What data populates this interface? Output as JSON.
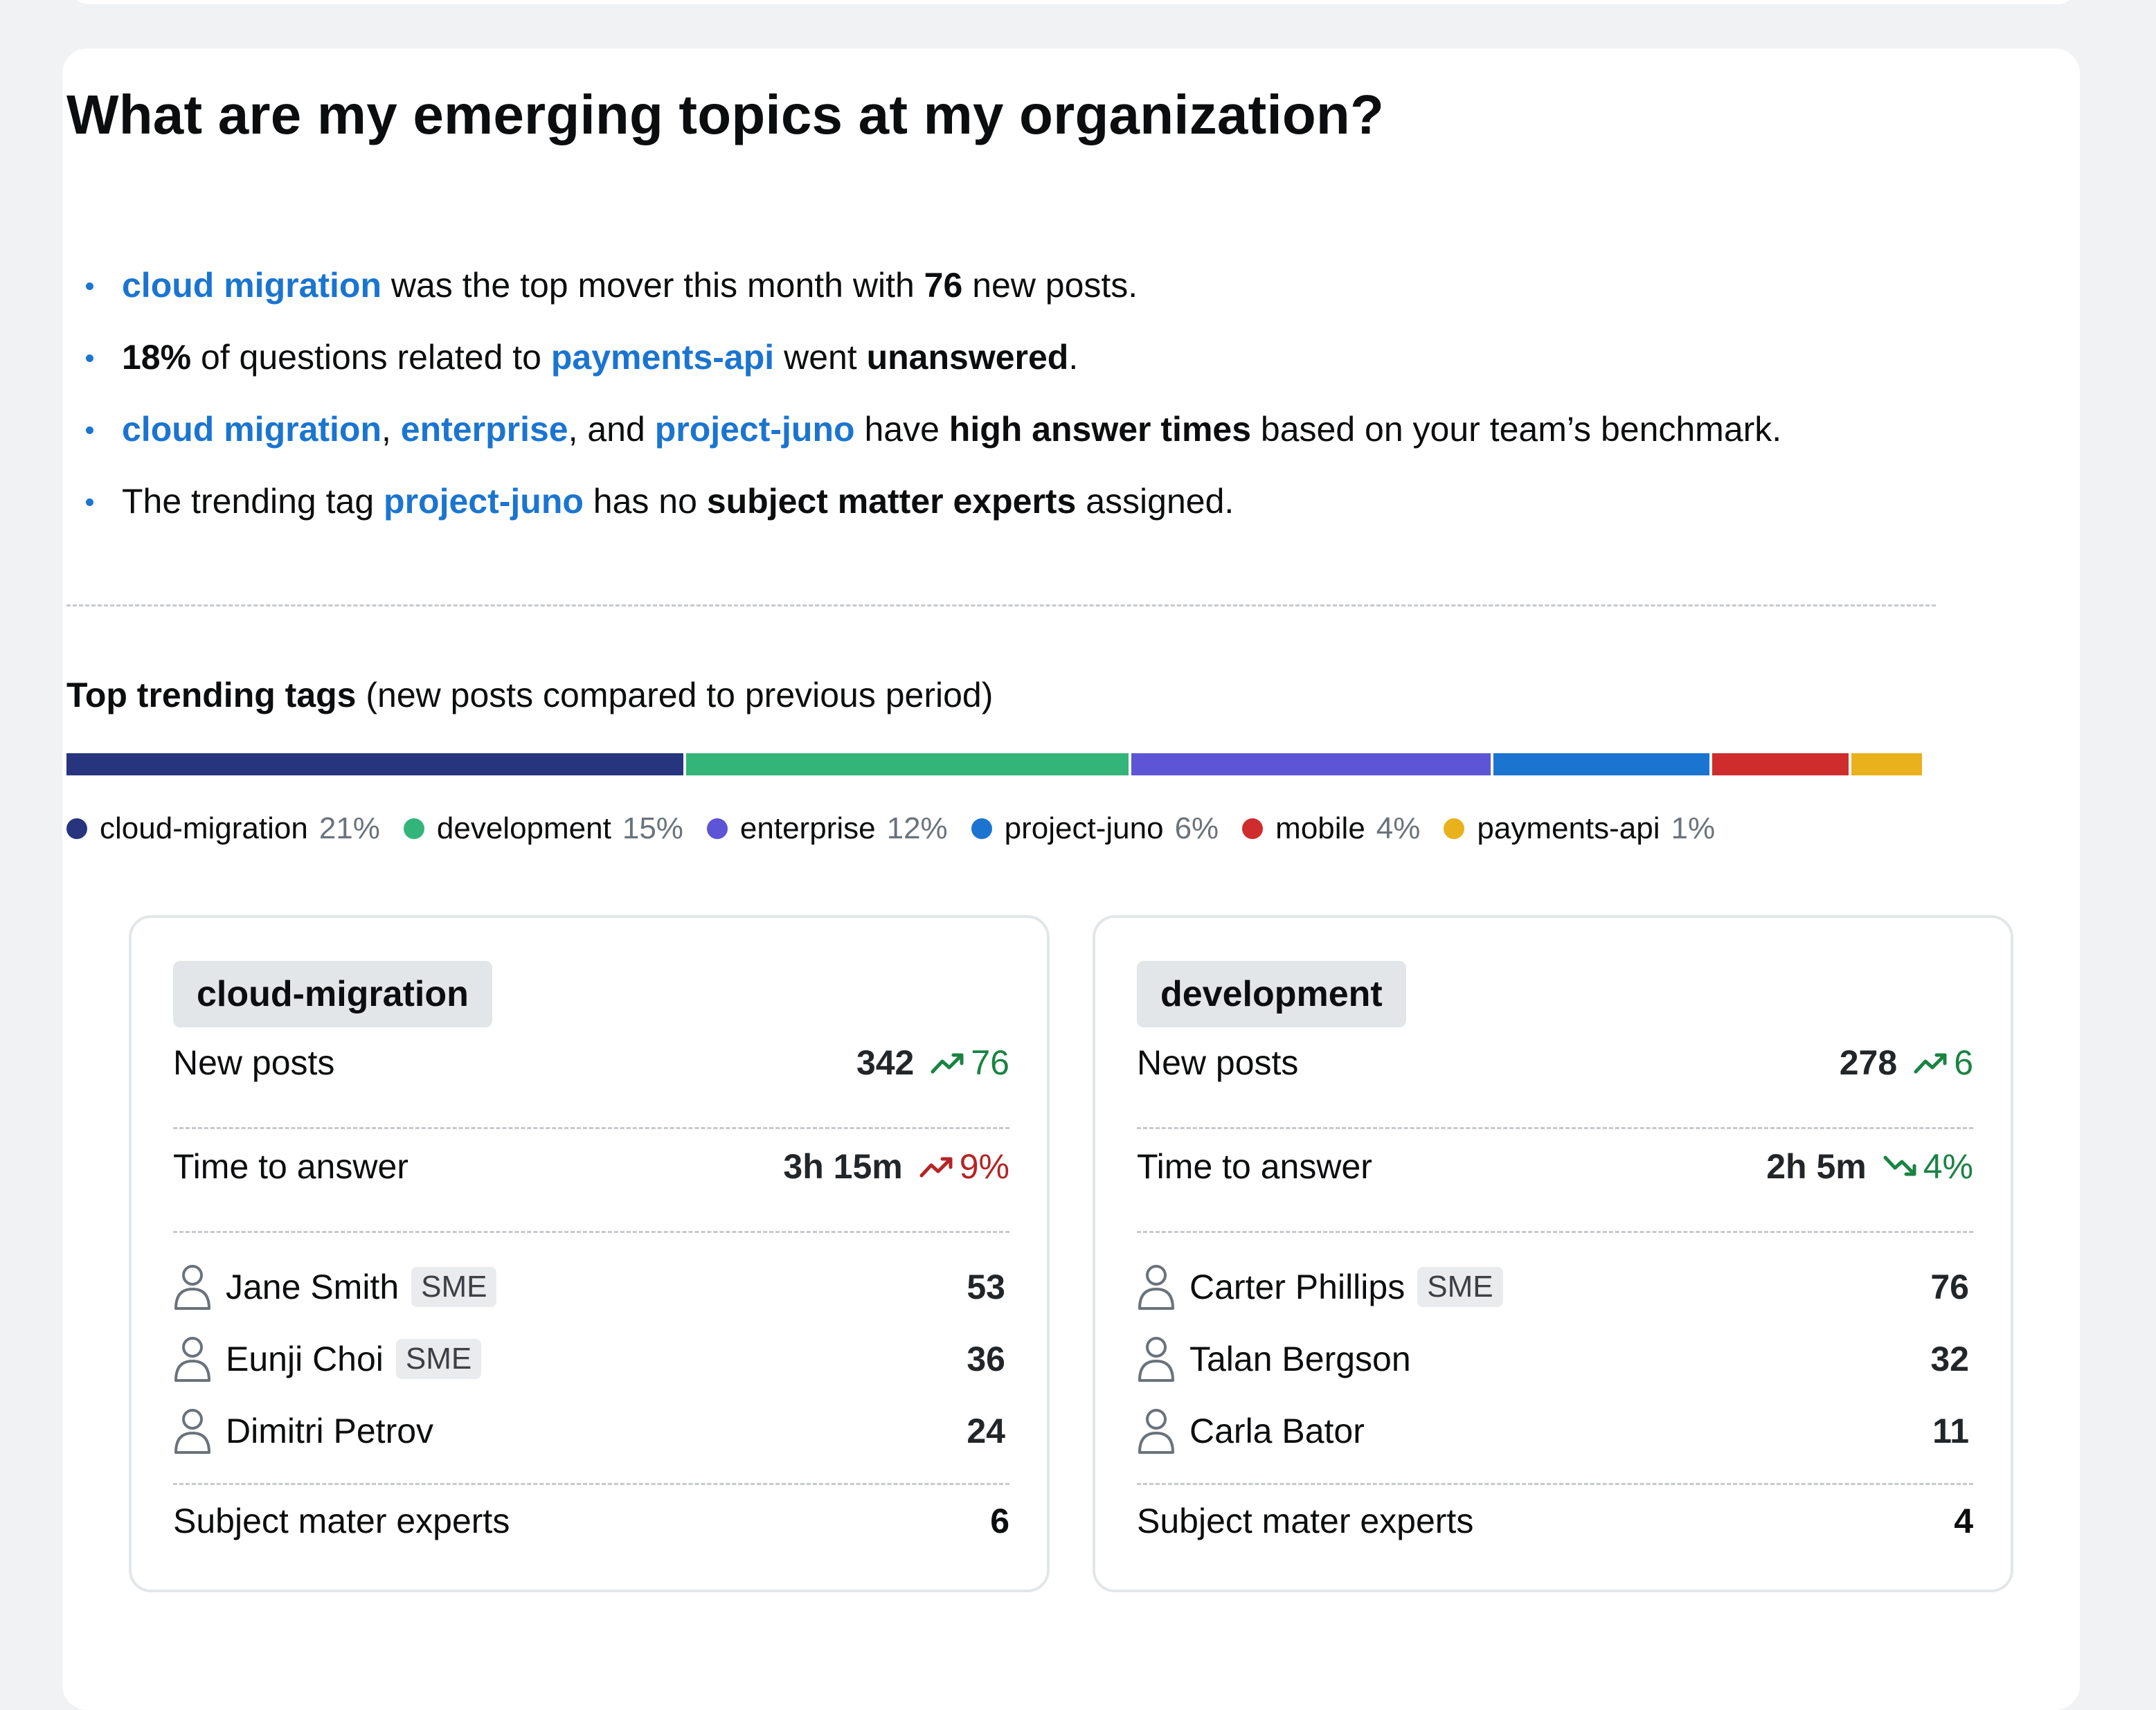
{
  "title": "What are my emerging topics at my organization?",
  "insights": [
    {
      "parts": [
        {
          "text": "cloud migration",
          "style": "link"
        },
        {
          "text": " was the top mover this month with ",
          "style": "plain"
        },
        {
          "text": "76",
          "style": "bold"
        },
        {
          "text": " new posts.",
          "style": "plain"
        }
      ]
    },
    {
      "parts": [
        {
          "text": "18%",
          "style": "bold"
        },
        {
          "text": " of questions related to ",
          "style": "plain"
        },
        {
          "text": "payments-api",
          "style": "link"
        },
        {
          "text": " went ",
          "style": "plain"
        },
        {
          "text": "unanswered",
          "style": "bold"
        },
        {
          "text": ".",
          "style": "plain"
        }
      ]
    },
    {
      "parts": [
        {
          "text": "cloud migration",
          "style": "link"
        },
        {
          "text": ", ",
          "style": "plain"
        },
        {
          "text": "enterprise",
          "style": "link"
        },
        {
          "text": ", and ",
          "style": "plain"
        },
        {
          "text": "project-juno",
          "style": "link"
        },
        {
          "text": " have ",
          "style": "plain"
        },
        {
          "text": "high answer times",
          "style": "bold"
        },
        {
          "text": " based on your team’s benchmark.",
          "style": "plain"
        }
      ]
    },
    {
      "parts": [
        {
          "text": "The trending tag ",
          "style": "plain"
        },
        {
          "text": "project-juno",
          "style": "link"
        },
        {
          "text": " has no ",
          "style": "plain"
        },
        {
          "text": "subject matter experts",
          "style": "bold"
        },
        {
          "text": " assigned.",
          "style": "plain"
        }
      ]
    }
  ],
  "trending": {
    "heading_bold": "Top trending tags",
    "heading_rest": " (new posts compared to previous period)",
    "tags": [
      {
        "name": "cloud-migration",
        "pct_label": "21%",
        "share": 33.4,
        "color": "#27357e"
      },
      {
        "name": "development",
        "pct_label": "15%",
        "share": 24.0,
        "color": "#33b579"
      },
      {
        "name": "enterprise",
        "pct_label": "12%",
        "share": 19.5,
        "color": "#5d55d6"
      },
      {
        "name": "project-juno",
        "pct_label": "6%",
        "share": 11.8,
        "color": "#1b75d0"
      },
      {
        "name": "mobile",
        "pct_label": "4%",
        "share": 7.5,
        "color": "#cf2d2d"
      },
      {
        "name": "payments-api",
        "pct_label": "1%",
        "share": 3.8,
        "color": "#e9b11c"
      }
    ]
  },
  "cards": [
    {
      "tag": "cloud-migration",
      "new_posts": {
        "label": "New posts",
        "value": "342",
        "delta": "76",
        "trend": "up-good"
      },
      "time_to_answer": {
        "label": "Time to answer",
        "value": "3h 15m",
        "delta": "9%",
        "trend": "up-bad"
      },
      "users": [
        {
          "name": "Jane Smith",
          "sme": "SME",
          "count": "53"
        },
        {
          "name": "Eunji Choi",
          "sme": "SME",
          "count": "36"
        },
        {
          "name": "Dimitri Petrov",
          "sme": "",
          "count": "24"
        }
      ],
      "sme_total": {
        "label": "Subject mater experts",
        "value": "6"
      }
    },
    {
      "tag": "development",
      "new_posts": {
        "label": "New posts",
        "value": "278",
        "delta": "6",
        "trend": "up-good"
      },
      "time_to_answer": {
        "label": "Time to answer",
        "value": "2h 5m",
        "delta": "4%",
        "trend": "down-good"
      },
      "users": [
        {
          "name": "Carter Phillips",
          "sme": "SME",
          "count": "76"
        },
        {
          "name": "Talan Bergson",
          "sme": "",
          "count": "32"
        },
        {
          "name": "Carla Bator",
          "sme": "",
          "count": "11"
        }
      ],
      "sme_total": {
        "label": "Subject mater experts",
        "value": "4"
      }
    }
  ],
  "icons": {
    "trend_up": "trend-up-icon",
    "trend_down": "trend-down-icon",
    "user": "user-icon"
  }
}
